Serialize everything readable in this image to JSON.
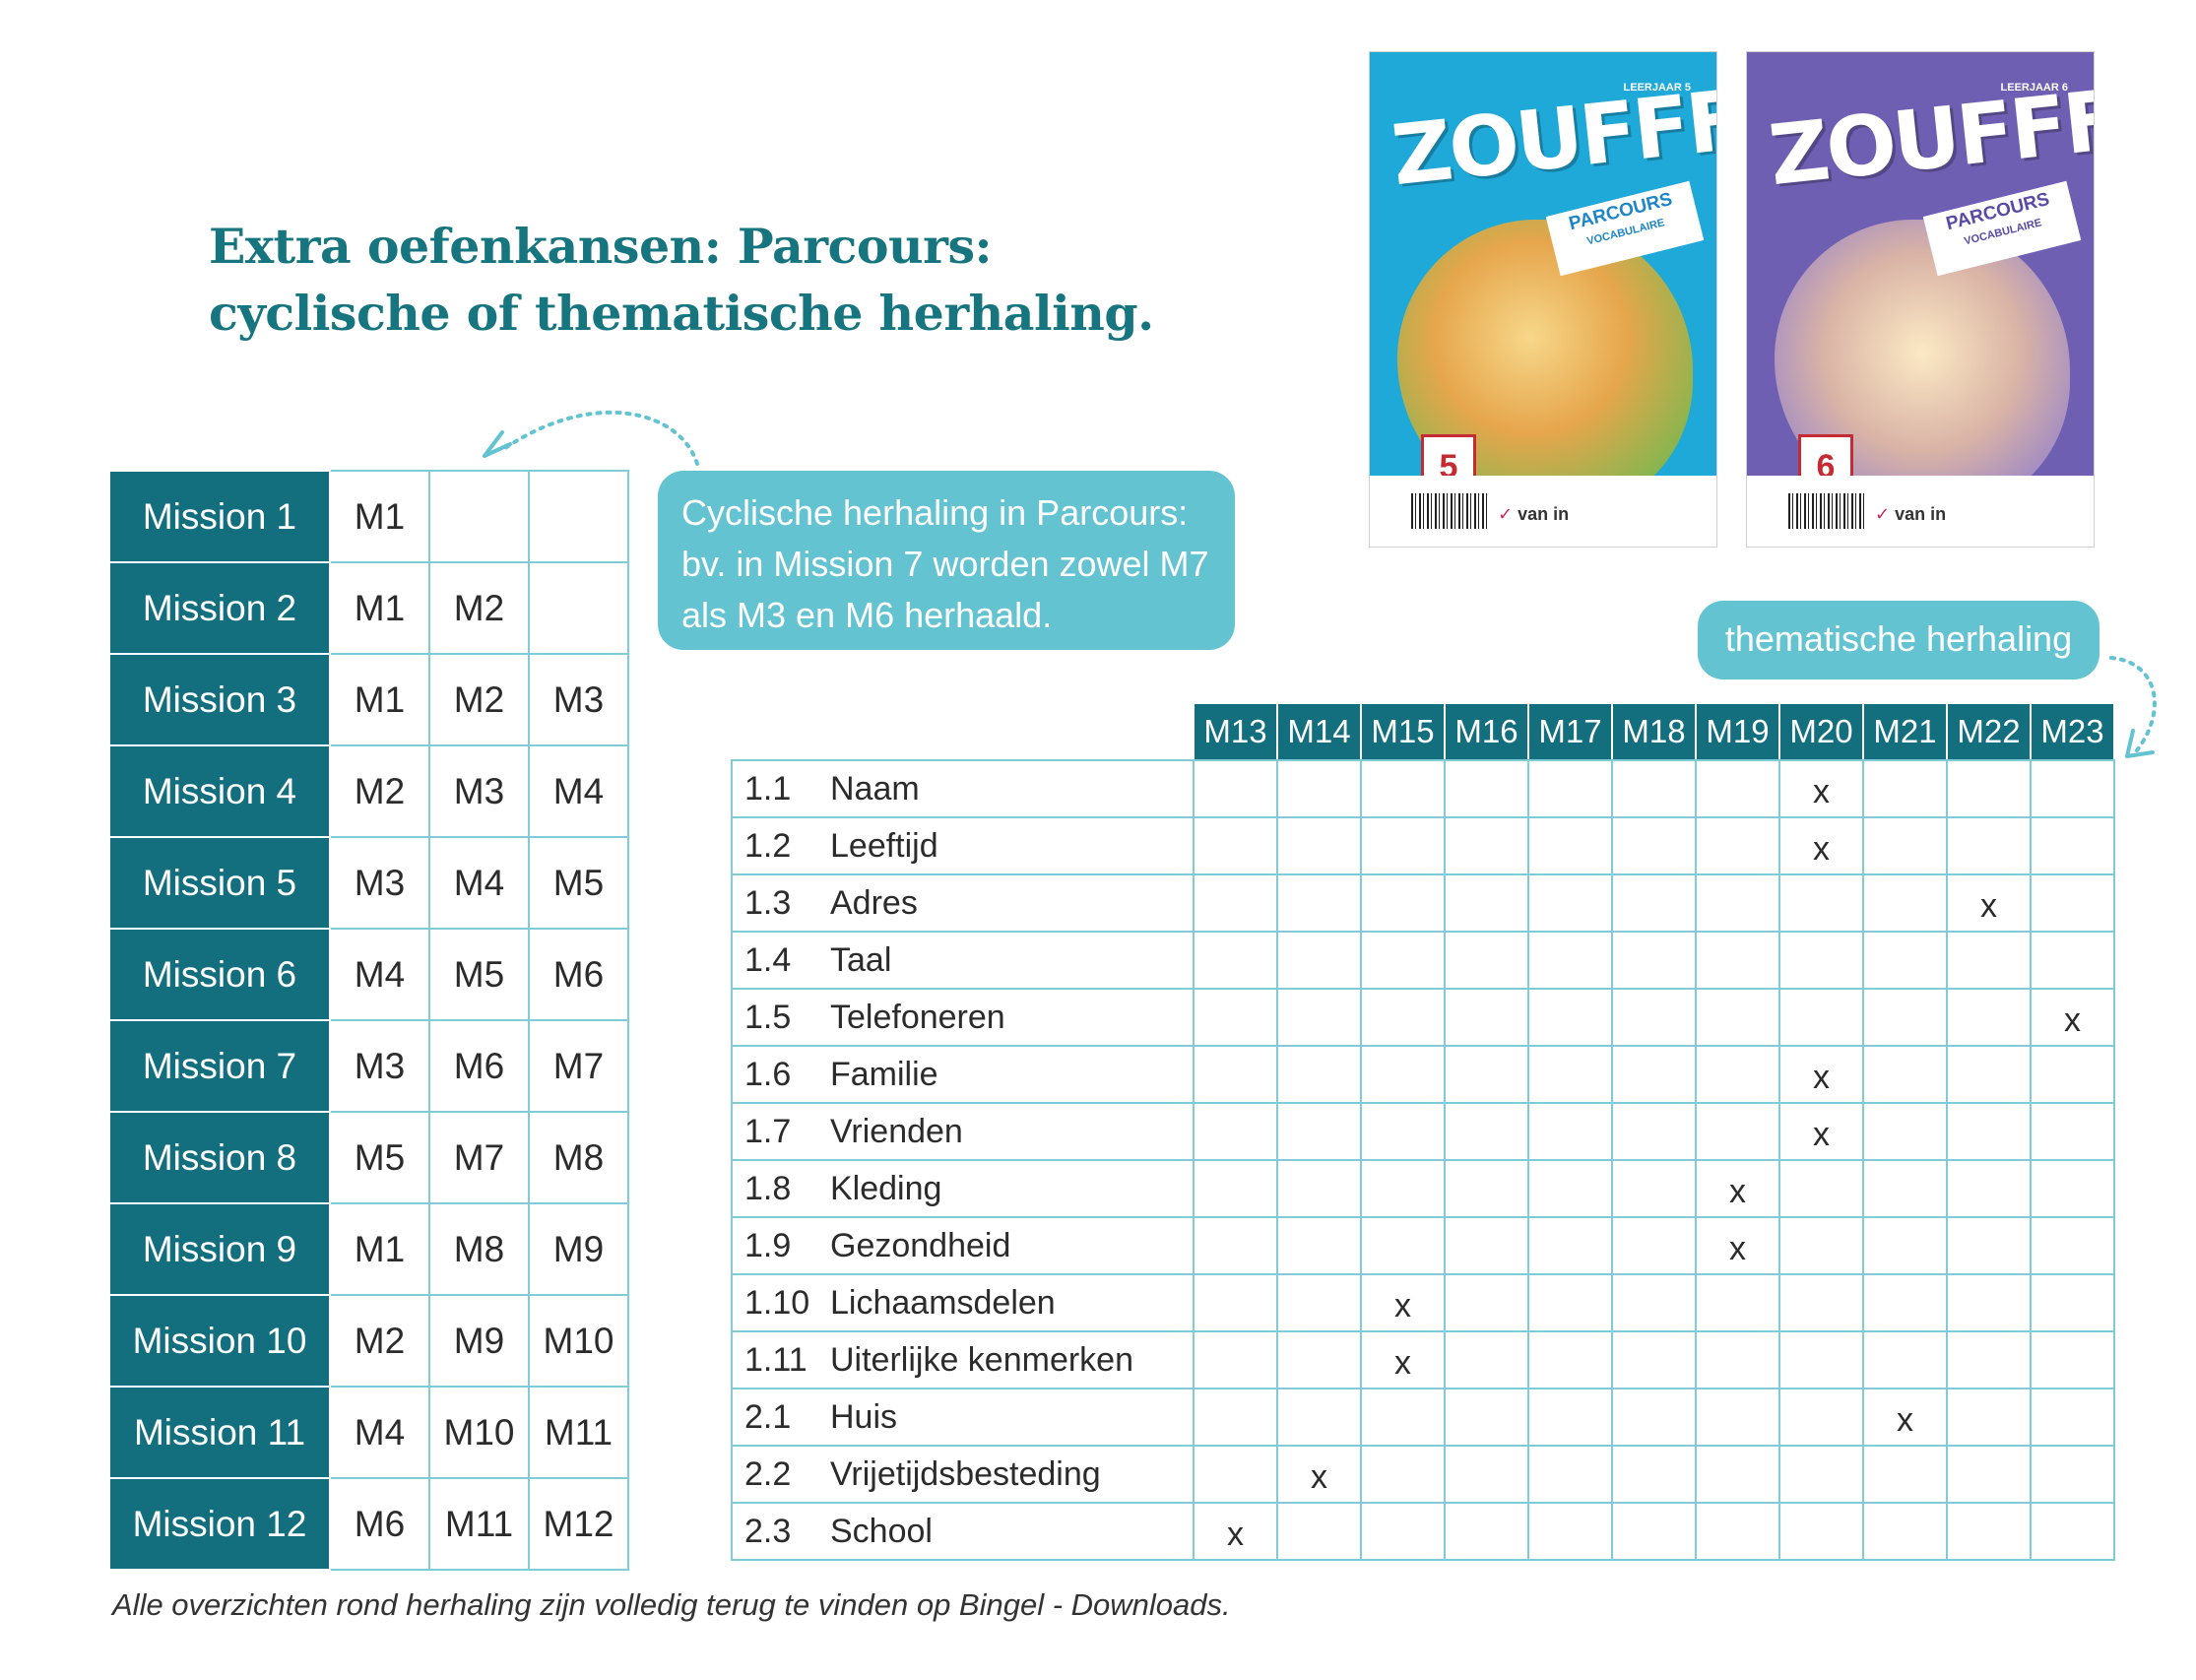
{
  "title": {
    "line1": "Extra oefenkansen: Parcours:",
    "line2": "cyclische of thematische herhaling."
  },
  "mission_table": {
    "rows": [
      {
        "label": "Mission 1",
        "cells": [
          "M1",
          "",
          ""
        ]
      },
      {
        "label": "Mission 2",
        "cells": [
          "M1",
          "M2",
          ""
        ]
      },
      {
        "label": "Mission 3",
        "cells": [
          "M1",
          "M2",
          "M3"
        ]
      },
      {
        "label": "Mission 4",
        "cells": [
          "M2",
          "M3",
          "M4"
        ]
      },
      {
        "label": "Mission 5",
        "cells": [
          "M3",
          "M4",
          "M5"
        ]
      },
      {
        "label": "Mission 6",
        "cells": [
          "M4",
          "M5",
          "M6"
        ]
      },
      {
        "label": "Mission 7",
        "cells": [
          "M3",
          "M6",
          "M7"
        ]
      },
      {
        "label": "Mission 8",
        "cells": [
          "M5",
          "M7",
          "M8"
        ]
      },
      {
        "label": "Mission 9",
        "cells": [
          "M1",
          "M8",
          "M9"
        ]
      },
      {
        "label": "Mission 10",
        "cells": [
          "M2",
          "M9",
          "M10"
        ]
      },
      {
        "label": "Mission 11",
        "cells": [
          "M4",
          "M10",
          "M11"
        ]
      },
      {
        "label": "Mission 12",
        "cells": [
          "M6",
          "M11",
          "M12"
        ]
      }
    ]
  },
  "bubble_cyclic": {
    "line1": "Cyclische herhaling in Parcours:",
    "line2": "bv. in Mission 7 worden zowel M7",
    "line3": "als M3 en M6 herhaald."
  },
  "bubble_thematic": "thematische herhaling",
  "theme_table": {
    "columns": [
      "M13",
      "M14",
      "M15",
      "M16",
      "M17",
      "M18",
      "M19",
      "M20",
      "M21",
      "M22",
      "M23"
    ],
    "rows": [
      {
        "num": "1.1",
        "label": "Naam",
        "marks": [
          "",
          "",
          "",
          "",
          "",
          "",
          "",
          "x",
          "",
          "",
          ""
        ]
      },
      {
        "num": "1.2",
        "label": "Leeftijd",
        "marks": [
          "",
          "",
          "",
          "",
          "",
          "",
          "",
          "x",
          "",
          "",
          ""
        ]
      },
      {
        "num": "1.3",
        "label": "Adres",
        "marks": [
          "",
          "",
          "",
          "",
          "",
          "",
          "",
          "",
          "",
          "x",
          ""
        ]
      },
      {
        "num": "1.4",
        "label": "Taal",
        "marks": [
          "",
          "",
          "",
          "",
          "",
          "",
          "",
          "",
          "",
          "",
          ""
        ]
      },
      {
        "num": "1.5",
        "label": "Telefoneren",
        "marks": [
          "",
          "",
          "",
          "",
          "",
          "",
          "",
          "",
          "",
          "",
          "x"
        ]
      },
      {
        "num": "1.6",
        "label": "Familie",
        "marks": [
          "",
          "",
          "",
          "",
          "",
          "",
          "",
          "x",
          "",
          "",
          ""
        ]
      },
      {
        "num": "1.7",
        "label": "Vrienden",
        "marks": [
          "",
          "",
          "",
          "",
          "",
          "",
          "",
          "x",
          "",
          "",
          ""
        ]
      },
      {
        "num": "1.8",
        "label": "Kleding",
        "marks": [
          "",
          "",
          "",
          "",
          "",
          "",
          "x",
          "",
          "",
          "",
          ""
        ]
      },
      {
        "num": "1.9",
        "label": "Gezondheid",
        "marks": [
          "",
          "",
          "",
          "",
          "",
          "",
          "x",
          "",
          "",
          "",
          ""
        ]
      },
      {
        "num": "1.10",
        "label": "Lichaamsdelen",
        "marks": [
          "",
          "",
          "x",
          "",
          "",
          "",
          "",
          "",
          "",
          "",
          ""
        ]
      },
      {
        "num": "1.11",
        "label": "Uiterlijke kenmerken",
        "marks": [
          "",
          "",
          "x",
          "",
          "",
          "",
          "",
          "",
          "",
          "",
          ""
        ]
      },
      {
        "num": "2.1",
        "label": "Huis",
        "marks": [
          "",
          "",
          "",
          "",
          "",
          "",
          "",
          "",
          "x",
          "",
          ""
        ]
      },
      {
        "num": "2.2",
        "label": "Vrijetijdsbesteding",
        "marks": [
          "",
          "x",
          "",
          "",
          "",
          "",
          "",
          "",
          "",
          "",
          ""
        ]
      },
      {
        "num": "2.3",
        "label": "School",
        "marks": [
          "x",
          "",
          "",
          "",
          "",
          "",
          "",
          "",
          "",
          "",
          ""
        ]
      }
    ]
  },
  "footnote": "Alle overzichten rond herhaling zijn volledig terug te vinden op Bingel - Downloads.",
  "books": [
    {
      "logo": "ZOUFFF!",
      "level": "LEERJAAR 5",
      "series": "PARCOURS",
      "subject": "VOCABULAIRE",
      "badge": "5",
      "publisher_mark": "✓",
      "publisher": "van in",
      "color": "#1fa9d8"
    },
    {
      "logo": "ZOUFFF!",
      "level": "LEERJAAR 6",
      "series": "PARCOURS",
      "subject": "VOCABULAIRE",
      "badge": "6",
      "publisher_mark": "✓",
      "publisher": "van in",
      "color": "#6f5fb3"
    }
  ],
  "colors": {
    "teal_dark": "#136f7e",
    "teal_light": "#64c3d1",
    "title": "#16757f",
    "grid": "#7fcbd6"
  }
}
